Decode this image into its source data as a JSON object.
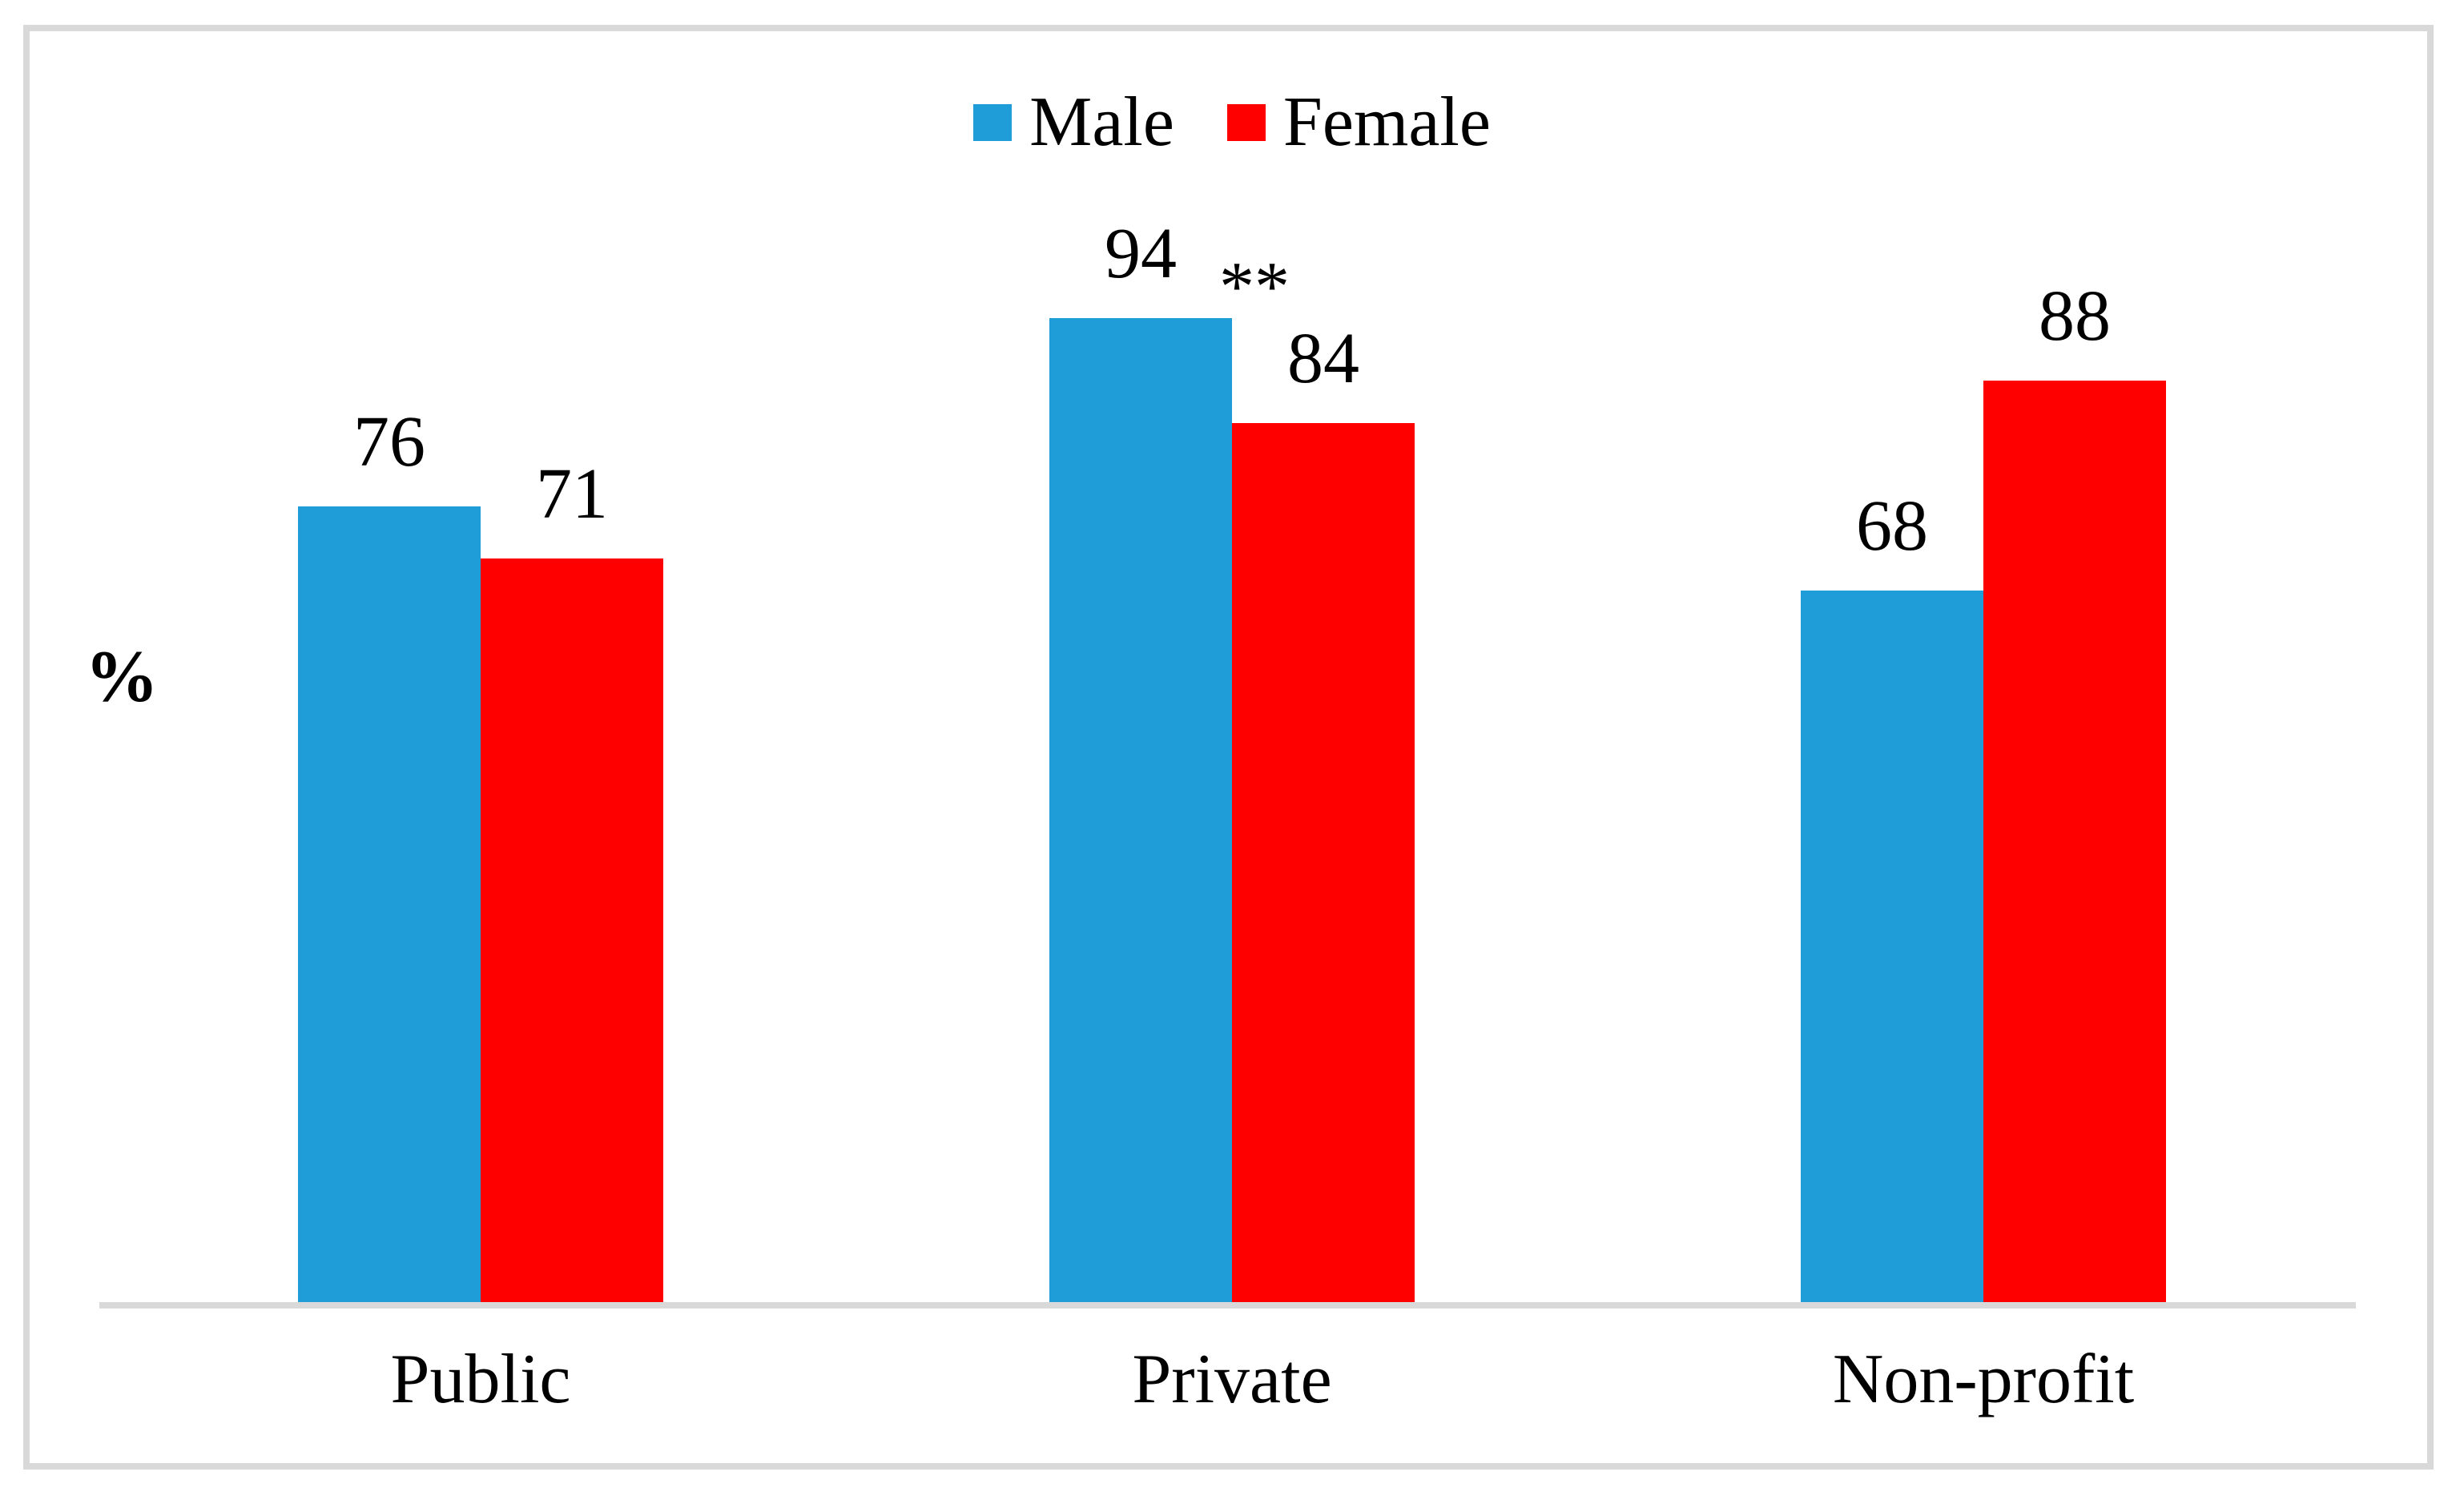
{
  "figure": {
    "background_color": "#FFFFFF",
    "border_color": "#D9D9D9",
    "axis_line_color": "#D9D9D9"
  },
  "legend": {
    "items": [
      {
        "label": "Male",
        "color": "#1F9DD9"
      },
      {
        "label": "Female",
        "color": "#FF0000"
      }
    ]
  },
  "chart_data": {
    "type": "bar",
    "title": "",
    "xlabel": "",
    "ylabel": "%",
    "ylim": [
      0,
      100
    ],
    "grid": false,
    "legend_position": "top-center",
    "data_labels": true,
    "categories": [
      "Public",
      "Private",
      "Non-profit"
    ],
    "series": [
      {
        "name": "Male",
        "color": "#1F9DD9",
        "values": [
          76,
          94,
          68
        ]
      },
      {
        "name": "Female",
        "color": "#FF0000",
        "values": [
          71,
          84,
          88
        ]
      }
    ],
    "annotations": [
      {
        "text": "**",
        "category": "Private"
      }
    ]
  }
}
